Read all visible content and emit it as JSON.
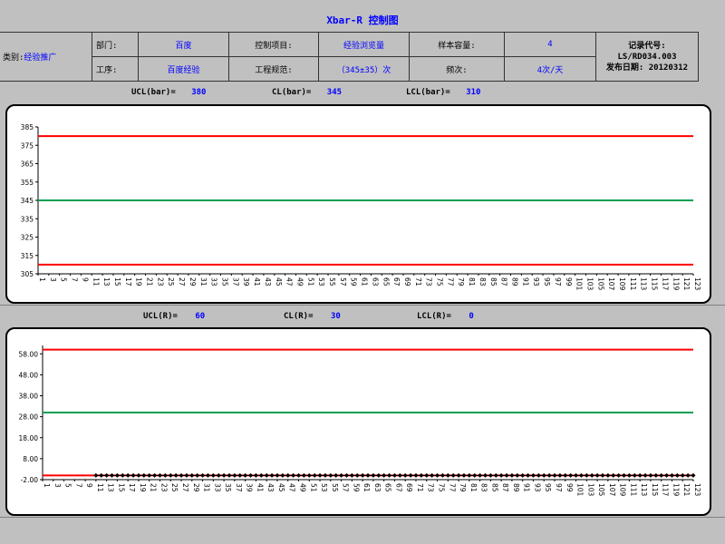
{
  "title": "Xbar-R 控制图",
  "info": {
    "category_label": "类别:",
    "category_value": "经验推广",
    "dept_label": "部门:",
    "dept_value": "百度",
    "process_label": "工序:",
    "process_value": "百度经验",
    "item_label": "控制项目:",
    "item_value": "经验浏览量",
    "spec_label": "工程规范:",
    "spec_value": "（345±35）次",
    "sample_label": "样本容量:",
    "sample_value": "4",
    "freq_label": "频次:",
    "freq_value": "4次/天",
    "record_label": "记录代号:",
    "record_code": "LS/RD034.003",
    "release_label": "发布日期:",
    "release_date": "20120312"
  },
  "xbar_limits": {
    "ucl_label": "UCL(bar)=",
    "ucl": "380",
    "cl_label": "CL(bar)=",
    "cl": "345",
    "lcl_label": "LCL(bar)=",
    "lcl": "310"
  },
  "r_limits": {
    "ucl_label": "UCL(R)=",
    "ucl": "60",
    "cl_label": "CL(R)=",
    "cl": "30",
    "lcl_label": "LCL(R)=",
    "lcl": "0"
  },
  "colors": {
    "limit_line": "#ff0000",
    "center_line": "#00a050",
    "title_text": "#0000ff",
    "data_points": "#000000"
  },
  "chart_data": [
    {
      "type": "line",
      "name": "xbar-chart",
      "x": {
        "start": 1,
        "end": 123,
        "label_step": 2
      },
      "ylim": [
        305,
        385
      ],
      "yticks": [
        "385",
        "375",
        "365",
        "355",
        "345",
        "335",
        "325",
        "315",
        "305"
      ],
      "lines": [
        {
          "name": "UCL",
          "value": 380
        },
        {
          "name": "CL",
          "value": 345
        },
        {
          "name": "LCL",
          "value": 310
        }
      ],
      "series": []
    },
    {
      "type": "line",
      "name": "r-chart",
      "x": {
        "start": 1,
        "end": 123,
        "label_step": 2
      },
      "ylim": [
        -2,
        62
      ],
      "yticks": [
        "58.00",
        "48.00",
        "38.00",
        "28.00",
        "18.00",
        "8.00",
        "-2.00"
      ],
      "lines": [
        {
          "name": "UCL",
          "value": 60
        },
        {
          "name": "CL",
          "value": 30
        },
        {
          "name": "LCL",
          "value": 0
        }
      ],
      "series": [
        {
          "x_start": 11,
          "x_end": 123,
          "value": 0
        }
      ]
    }
  ]
}
